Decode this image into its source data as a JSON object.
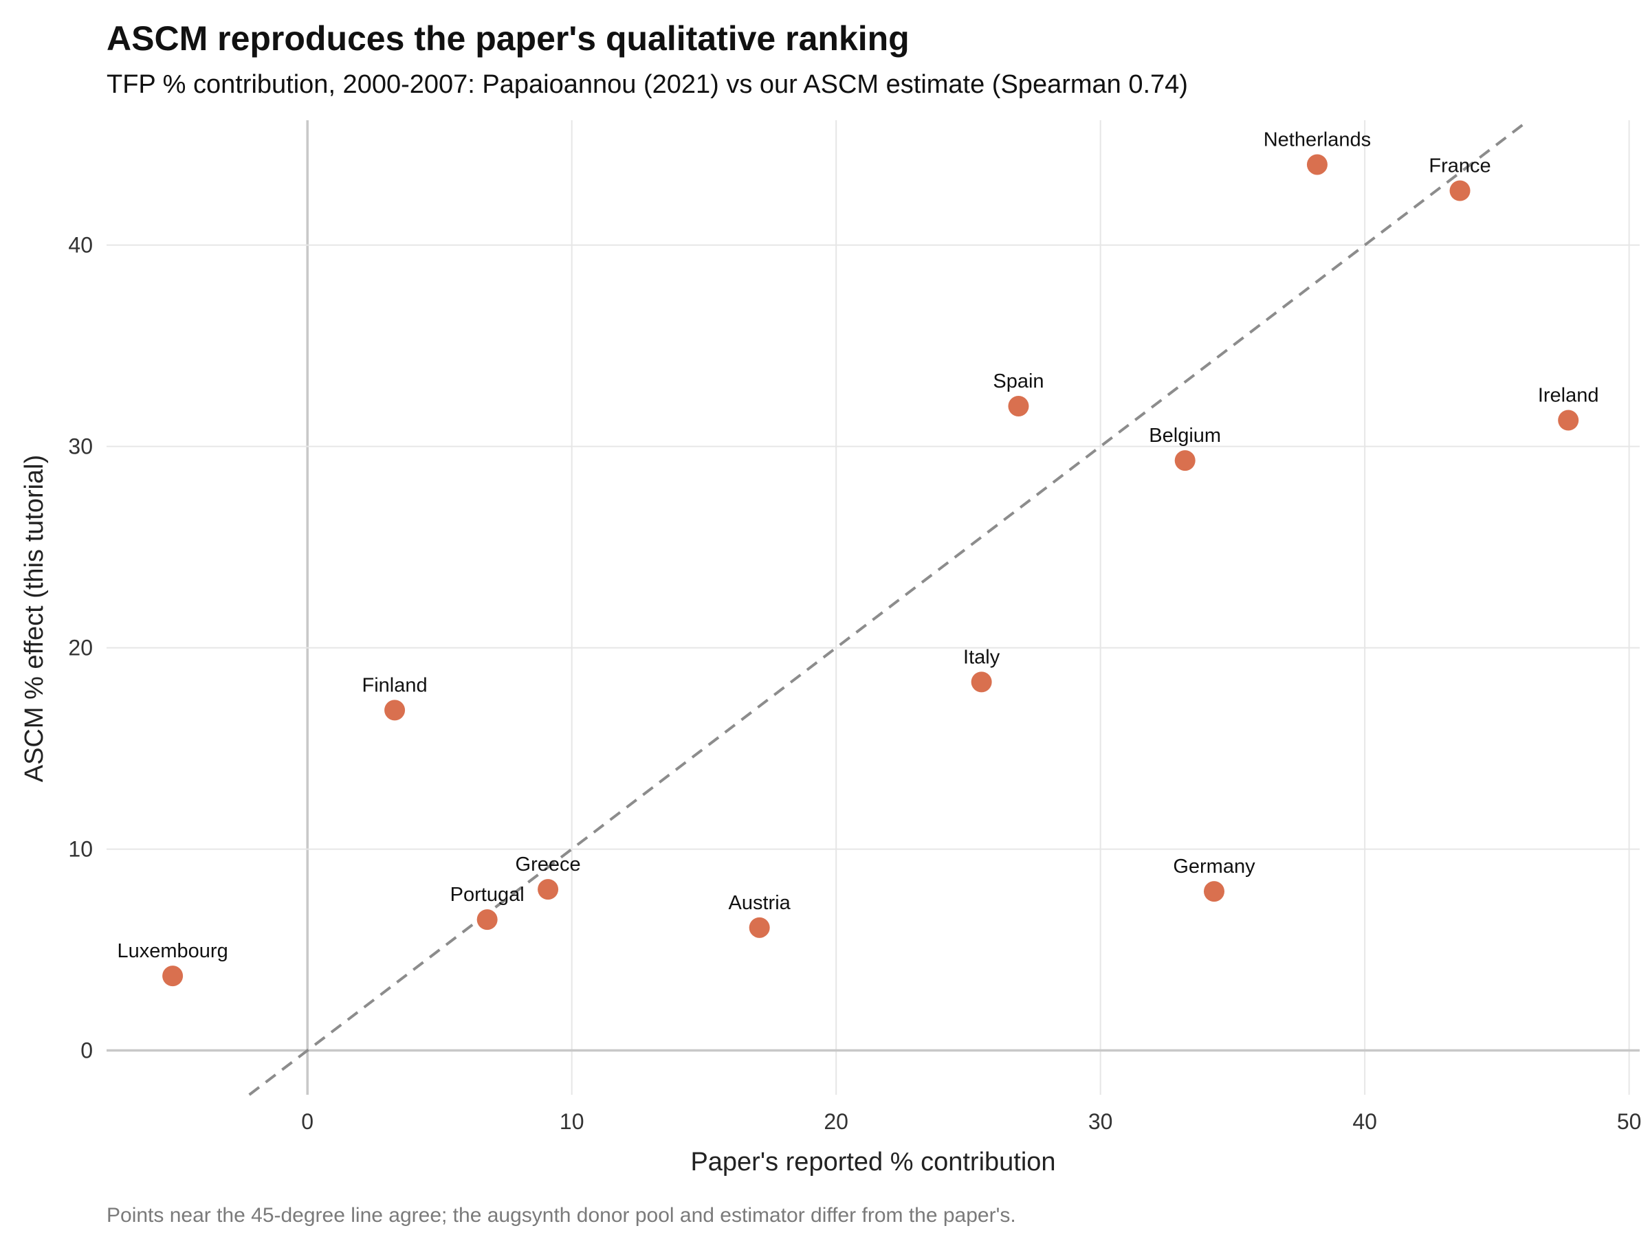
{
  "chart_data": {
    "type": "scatter",
    "title": "ASCM reproduces the paper's qualitative ranking",
    "subtitle": "TFP % contribution, 2000-2007: Papaioannou (2021) vs our ASCM estimate (Spearman 0.74)",
    "xlabel": "Paper's reported % contribution",
    "ylabel": "ASCM % effect (this tutorial)",
    "caption": "Points near the 45-degree line agree; the augsynth donor pool and estimator differ from the paper's.",
    "xlim": [
      -7.6,
      50.4
    ],
    "ylim": [
      -2.2,
      46.2
    ],
    "x_ticks": [
      0,
      10,
      20,
      30,
      40,
      50
    ],
    "y_ticks": [
      0,
      10,
      20,
      30,
      40
    ],
    "grid": true,
    "reference_line": {
      "slope": 1,
      "intercept": 0,
      "style": "dashed"
    },
    "point_color": "#D9704F",
    "points": [
      {
        "label": "Netherlands",
        "x": 38.2,
        "y": 44.0
      },
      {
        "label": "France",
        "x": 43.6,
        "y": 42.7
      },
      {
        "label": "Ireland",
        "x": 47.7,
        "y": 31.3
      },
      {
        "label": "Spain",
        "x": 26.9,
        "y": 32.0
      },
      {
        "label": "Belgium",
        "x": 33.2,
        "y": 29.3
      },
      {
        "label": "Italy",
        "x": 25.5,
        "y": 18.3
      },
      {
        "label": "Finland",
        "x": 3.3,
        "y": 16.9
      },
      {
        "label": "Germany",
        "x": 34.3,
        "y": 7.9
      },
      {
        "label": "Greece",
        "x": 9.1,
        "y": 8.0
      },
      {
        "label": "Portugal",
        "x": 6.8,
        "y": 6.5
      },
      {
        "label": "Austria",
        "x": 17.1,
        "y": 6.1
      },
      {
        "label": "Luxembourg",
        "x": -5.1,
        "y": 3.7
      }
    ]
  }
}
